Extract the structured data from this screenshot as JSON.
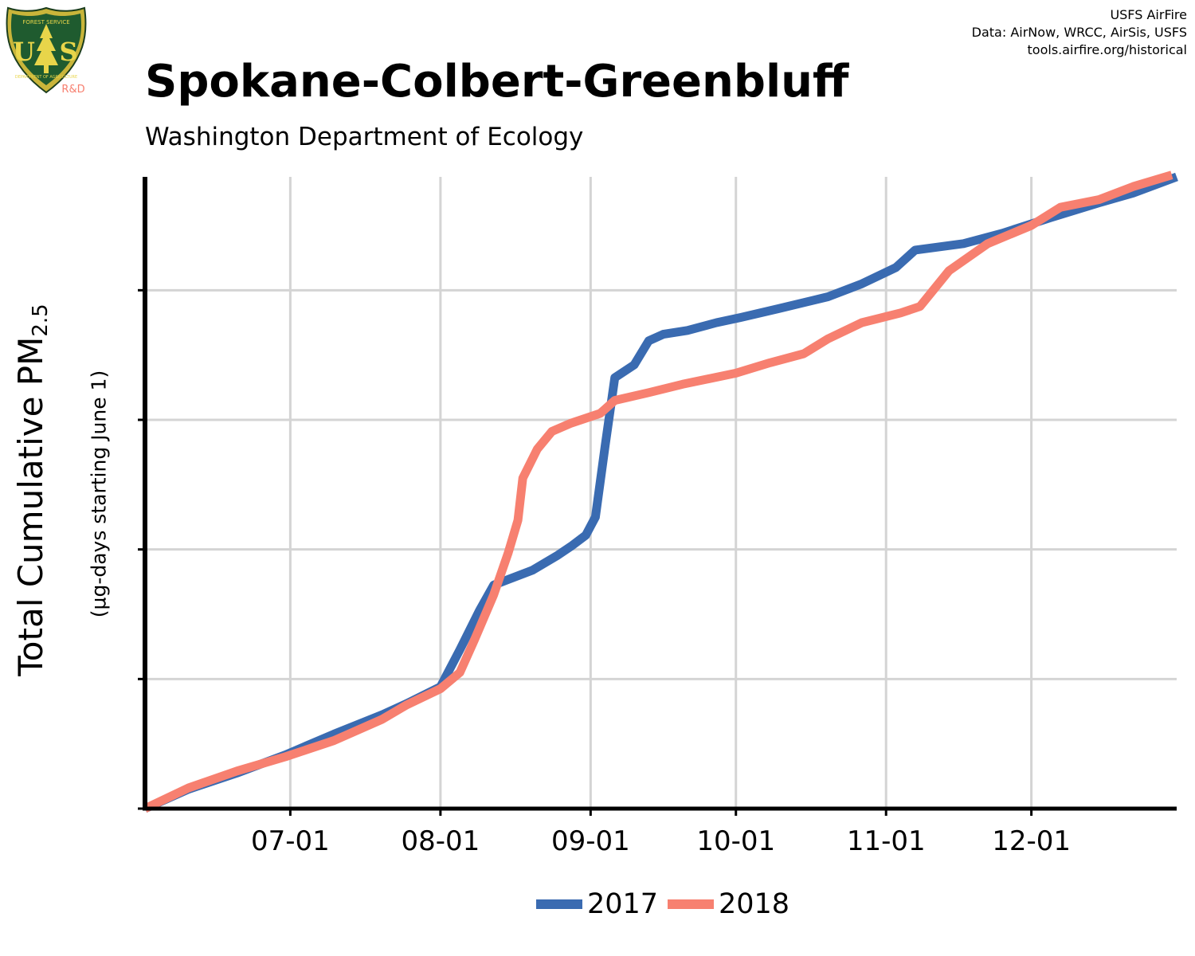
{
  "header": {
    "credits": [
      "USFS AirFire",
      "Data: AirNow, WRCC, AirSis, USFS",
      "tools.airfire.org/historical"
    ],
    "logo": {
      "top_text": "FOREST SERVICE",
      "initials_left": "U",
      "initials_right": "S",
      "bottom_text": "DEPARTMENT OF AGRICULTURE",
      "badge": "R&D",
      "icon": "usfs-shield-icon"
    }
  },
  "chart_data": {
    "type": "line",
    "title": "Spokane-Colbert-Greenbluff",
    "subtitle": "Washington Department of Ecology",
    "ylabel": "Total Cumulative PM",
    "ylabel_subscript": "2.5",
    "ylabel_units": "(µg-days starting June 1)",
    "x_range": [
      "06-01",
      "12-31"
    ],
    "x_ticks": [
      "07-01",
      "08-01",
      "09-01",
      "10-01",
      "11-01",
      "12-01"
    ],
    "y_tick_count": 6,
    "y_tick_labels": [],
    "grid": true,
    "legend": "bottom",
    "series": [
      {
        "name": "2017",
        "color": "#3a6bb1",
        "points": [
          [
            "06-01",
            0
          ],
          [
            "06-10",
            0.3
          ],
          [
            "06-20",
            0.55
          ],
          [
            "06-30",
            0.83
          ],
          [
            "07-10",
            1.15
          ],
          [
            "07-20",
            1.45
          ],
          [
            "07-25",
            1.62
          ],
          [
            "08-01",
            1.88
          ],
          [
            "08-05",
            2.45
          ],
          [
            "08-09",
            3.05
          ],
          [
            "08-12",
            3.45
          ],
          [
            "08-20",
            3.68
          ],
          [
            "08-25",
            3.9
          ],
          [
            "08-28",
            4.05
          ],
          [
            "08-31",
            4.22
          ],
          [
            "09-02",
            4.5
          ],
          [
            "09-04",
            5.6
          ],
          [
            "09-06",
            6.65
          ],
          [
            "09-10",
            6.85
          ],
          [
            "09-13",
            7.22
          ],
          [
            "09-16",
            7.32
          ],
          [
            "09-21",
            7.38
          ],
          [
            "09-27",
            7.5
          ],
          [
            "10-02",
            7.58
          ],
          [
            "10-10",
            7.72
          ],
          [
            "10-20",
            7.9
          ],
          [
            "10-27",
            8.1
          ],
          [
            "11-03",
            8.35
          ],
          [
            "11-07",
            8.62
          ],
          [
            "11-17",
            8.72
          ],
          [
            "11-25",
            8.88
          ],
          [
            "12-05",
            9.12
          ],
          [
            "12-15",
            9.35
          ],
          [
            "12-22",
            9.5
          ],
          [
            "12-31",
            9.75
          ]
        ]
      },
      {
        "name": "2018",
        "color": "#f78070",
        "points": [
          [
            "06-01",
            0
          ],
          [
            "06-10",
            0.32
          ],
          [
            "06-20",
            0.58
          ],
          [
            "06-30",
            0.8
          ],
          [
            "07-10",
            1.05
          ],
          [
            "07-20",
            1.38
          ],
          [
            "07-25",
            1.6
          ],
          [
            "08-01",
            1.85
          ],
          [
            "08-05",
            2.1
          ],
          [
            "08-08",
            2.6
          ],
          [
            "08-12",
            3.3
          ],
          [
            "08-15",
            3.95
          ],
          [
            "08-17",
            4.45
          ],
          [
            "08-18",
            5.1
          ],
          [
            "08-21",
            5.55
          ],
          [
            "08-24",
            5.82
          ],
          [
            "08-28",
            5.95
          ],
          [
            "09-03",
            6.1
          ],
          [
            "09-06",
            6.3
          ],
          [
            "09-13",
            6.42
          ],
          [
            "09-20",
            6.55
          ],
          [
            "10-01",
            6.72
          ],
          [
            "10-08",
            6.88
          ],
          [
            "10-15",
            7.02
          ],
          [
            "10-20",
            7.25
          ],
          [
            "10-27",
            7.5
          ],
          [
            "11-04",
            7.65
          ],
          [
            "11-08",
            7.75
          ],
          [
            "11-14",
            8.3
          ],
          [
            "11-22",
            8.72
          ],
          [
            "12-01",
            9.0
          ],
          [
            "12-07",
            9.28
          ],
          [
            "12-15",
            9.4
          ],
          [
            "12-22",
            9.6
          ],
          [
            "12-30",
            9.78
          ]
        ]
      }
    ]
  }
}
